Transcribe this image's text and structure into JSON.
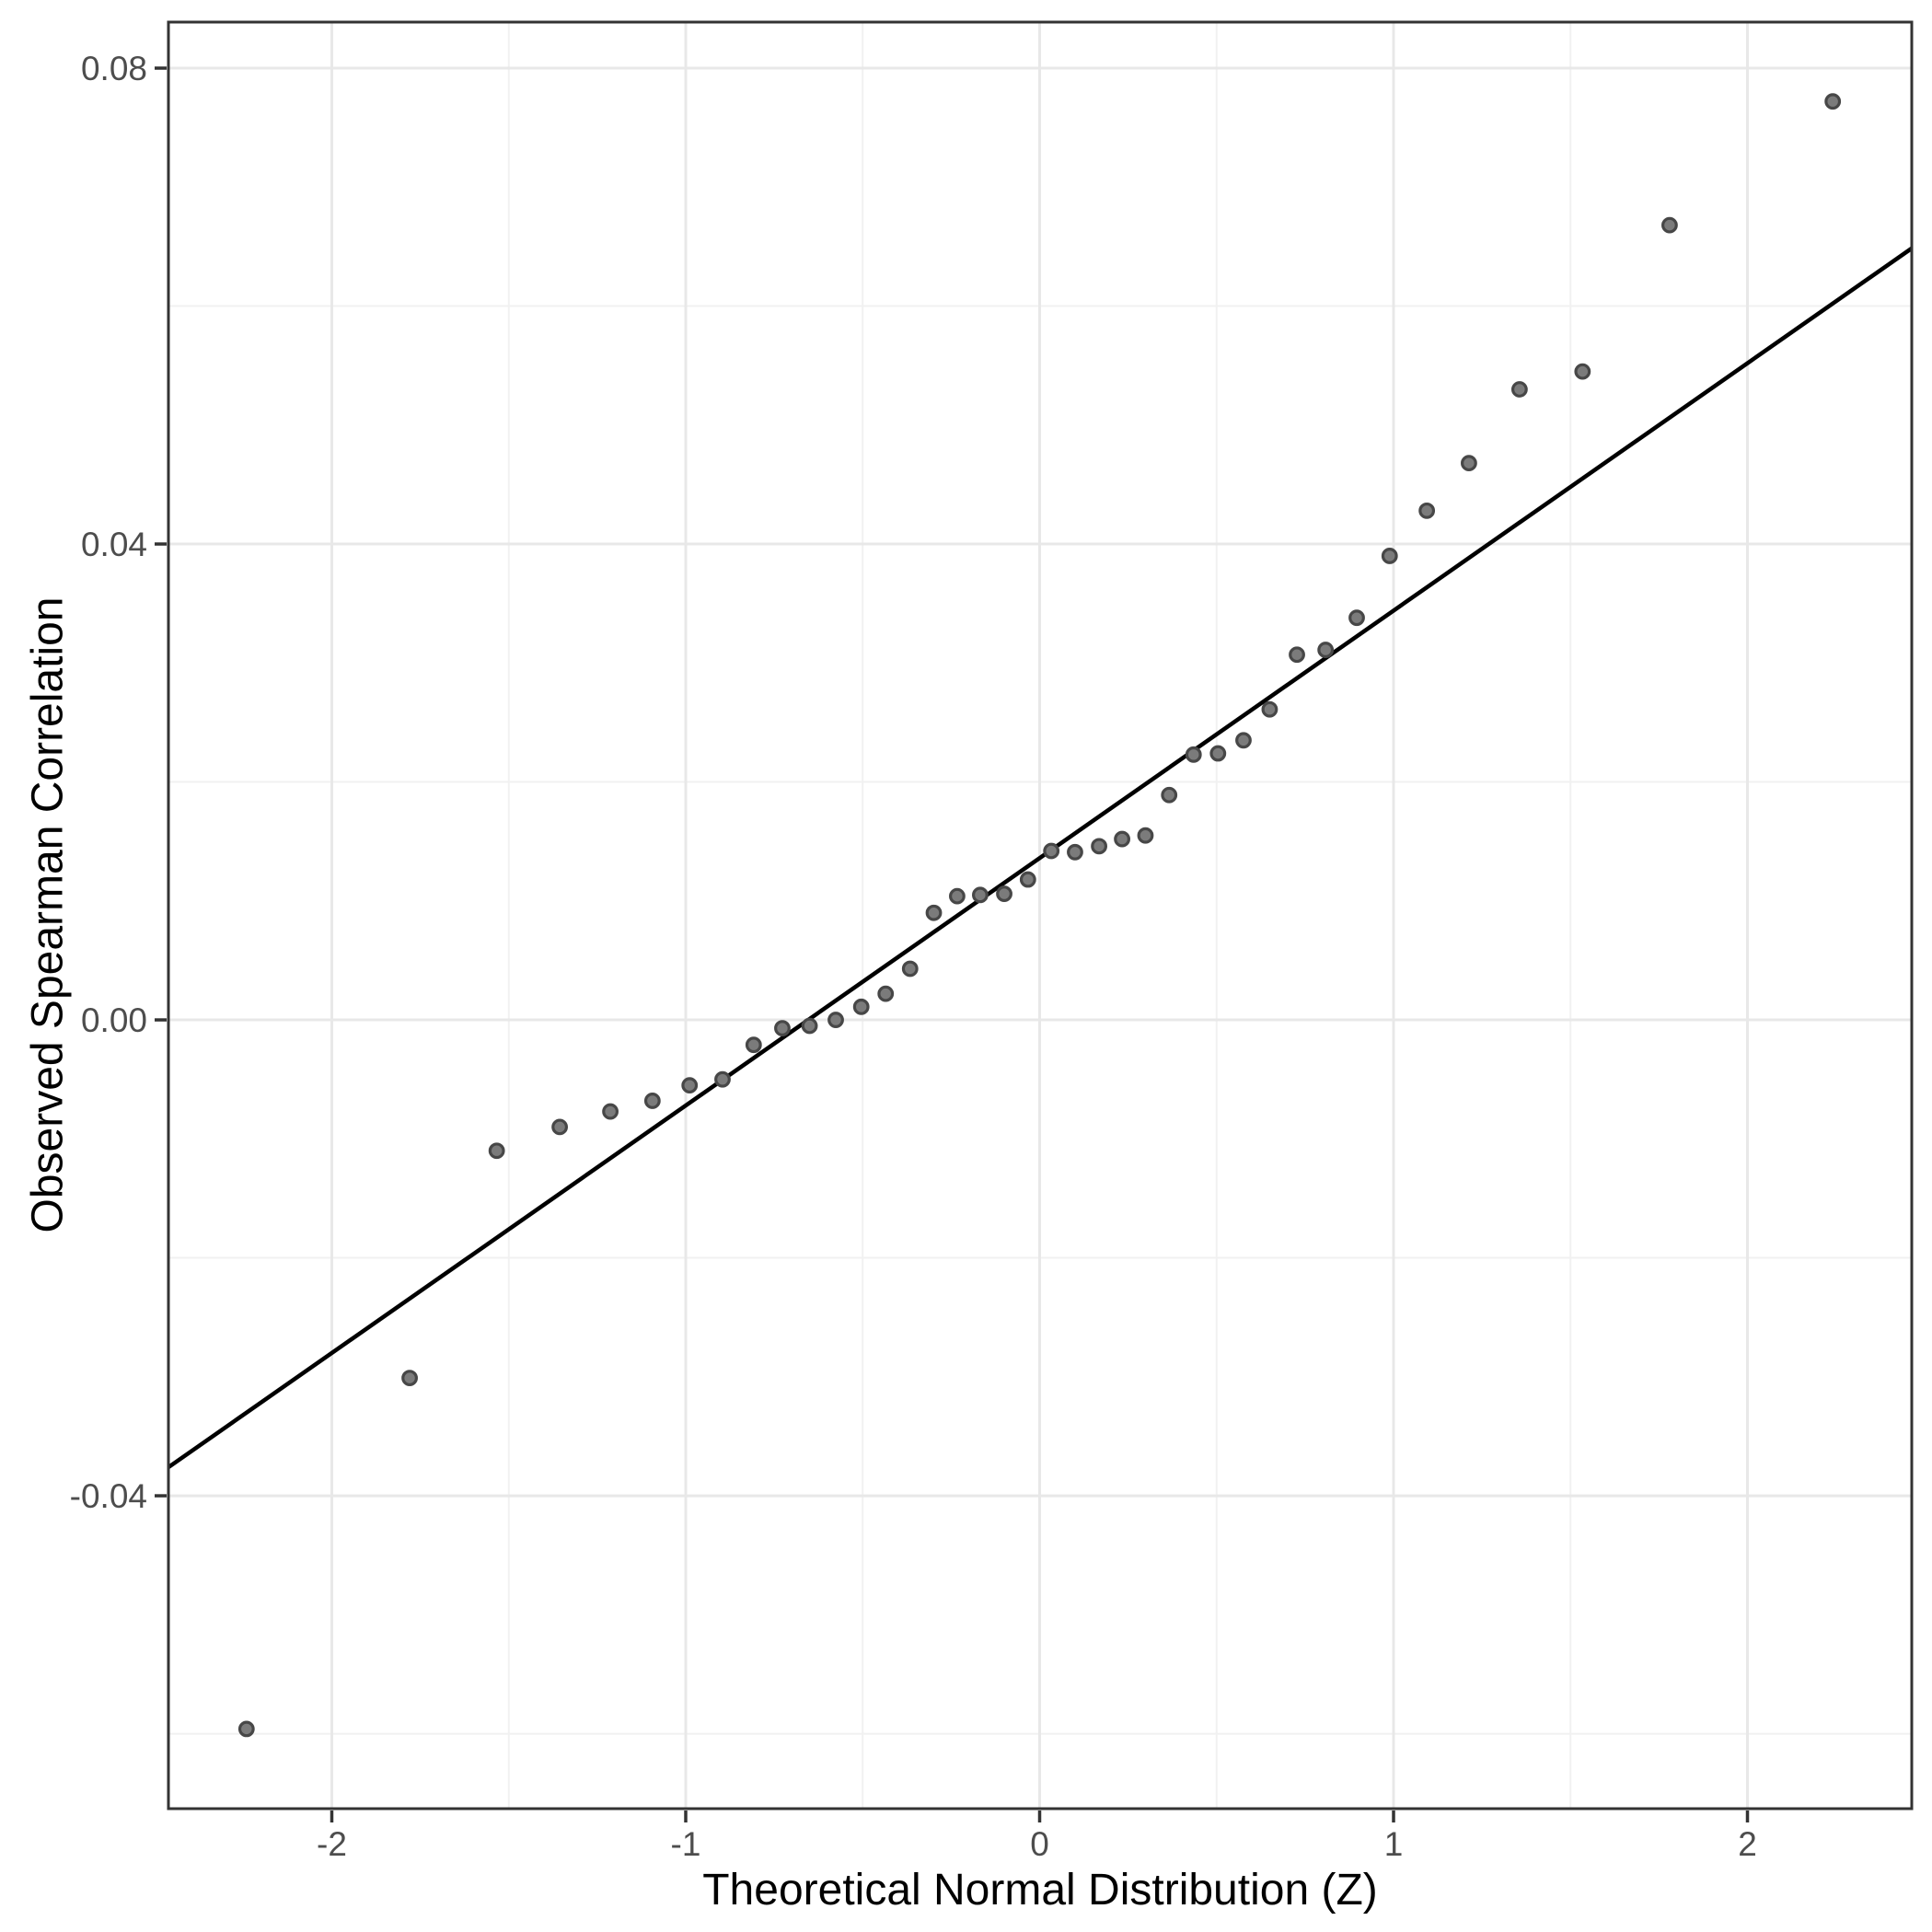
{
  "figure": {
    "background": "#ffffff"
  },
  "chart_data": {
    "type": "scatter",
    "title": "",
    "xlabel": "Theoretical Normal Distribution (Z)",
    "ylabel": "Observed Spearman Correlation",
    "xlim": [
      -2.4616,
      2.4642
    ],
    "ylim": [
      -0.0663,
      0.08387
    ],
    "grid": "on",
    "legend": "none",
    "x_major_ticks": [
      -2,
      -1,
      0,
      1,
      2
    ],
    "x_tick_labels": [
      "-2",
      "-1",
      "0",
      "1",
      "2"
    ],
    "x_minor_ticks": [
      -1.5,
      -0.5,
      0.5,
      1.5
    ],
    "y_major_ticks": [
      0.08,
      0.04,
      0.0,
      -0.04
    ],
    "y_tick_labels": [
      "0.08",
      "0.04",
      "0.00",
      "-0.04"
    ],
    "y_minor_ticks": [
      0.06,
      0.02,
      -0.02,
      -0.06
    ],
    "points": [
      [
        -2.241,
        -0.0596
      ],
      [
        -1.78,
        -0.0301
      ],
      [
        -1.534,
        -0.011
      ],
      [
        -1.356,
        -0.009
      ],
      [
        -1.213,
        -0.0077
      ],
      [
        -1.094,
        -0.0068
      ],
      [
        -0.989,
        -0.0055
      ],
      [
        -0.896,
        -0.005
      ],
      [
        -0.808,
        -0.0021
      ],
      [
        -0.727,
        -0.0007
      ],
      [
        -0.65,
        -0.0005
      ],
      [
        -0.576,
        0.0
      ],
      [
        -0.504,
        0.0011
      ],
      [
        -0.435,
        0.0022
      ],
      [
        -0.366,
        0.0043
      ],
      [
        -0.299,
        0.009
      ],
      [
        -0.233,
        0.0104
      ],
      [
        -0.168,
        0.0105
      ],
      [
        -0.1,
        0.0106
      ],
      [
        -0.033,
        0.0118
      ],
      [
        0.033,
        0.0142
      ],
      [
        0.1,
        0.0141
      ],
      [
        0.168,
        0.0146
      ],
      [
        0.233,
        0.0152
      ],
      [
        0.299,
        0.0155
      ],
      [
        0.366,
        0.0189
      ],
      [
        0.435,
        0.0223
      ],
      [
        0.504,
        0.0224
      ],
      [
        0.576,
        0.0235
      ],
      [
        0.65,
        0.0261
      ],
      [
        0.727,
        0.0307
      ],
      [
        0.808,
        0.0311
      ],
      [
        0.896,
        0.0338
      ],
      [
        0.989,
        0.039
      ],
      [
        1.094,
        0.0428
      ],
      [
        1.213,
        0.0468
      ],
      [
        1.356,
        0.053
      ],
      [
        1.534,
        0.0545
      ],
      [
        1.78,
        0.0668
      ],
      [
        2.241,
        0.0772
      ]
    ],
    "reference_line": {
      "intercept": 0.0136,
      "slope": 0.0208,
      "color": "#000000"
    },
    "colors": {
      "point_fill": "#7b7b7b",
      "point_stroke": "#474747",
      "grid_major": "#e8e8e8",
      "grid_minor": "#f1f1f1",
      "panel_border": "#333333",
      "tick_mark": "#333333",
      "tick_label": "#4d4d4d",
      "axis_title": "#000000",
      "panel_background": "#ffffff"
    }
  }
}
